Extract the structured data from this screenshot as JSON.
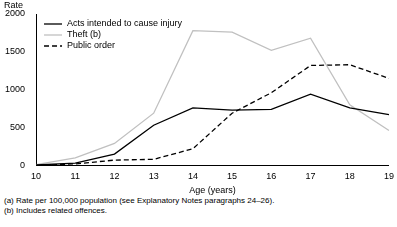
{
  "chart_data": {
    "type": "line",
    "ylabel": "Rate",
    "xlabel": "Age (years)",
    "categories": [
      "10",
      "11",
      "12",
      "13",
      "14",
      "15",
      "16",
      "17",
      "18",
      "19"
    ],
    "series": [
      {
        "name": "Acts intended to cause injury",
        "color": "#000000",
        "line_style": "solid",
        "values": [
          5,
          30,
          150,
          530,
          760,
          730,
          740,
          940,
          760,
          670
        ]
      },
      {
        "name": "Theft (b)",
        "color": "#c0c0c0",
        "line_style": "solid",
        "values": [
          10,
          100,
          290,
          690,
          1780,
          1760,
          1520,
          1680,
          800,
          460
        ]
      },
      {
        "name": "Public order",
        "color": "#000000",
        "line_style": "dashed",
        "values": [
          0,
          20,
          70,
          80,
          220,
          690,
          960,
          1320,
          1330,
          1150
        ]
      }
    ],
    "ylim": [
      0,
      2000
    ],
    "yticks": [
      0,
      500,
      1000,
      1500,
      2000
    ],
    "grid": false,
    "legend": "top-left",
    "notes": [
      "(a) Rate per 100,000 population (see Explanatory Notes paragraphs 24–26).",
      "(b) Includes related offences."
    ]
  }
}
